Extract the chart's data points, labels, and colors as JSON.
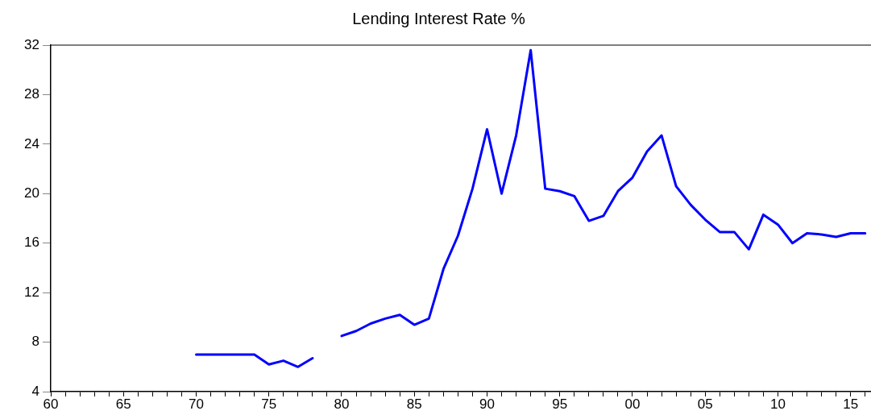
{
  "chart_data": {
    "type": "line",
    "title": "Lending Interest Rate %",
    "x": [
      1970,
      1971,
      1972,
      1973,
      1974,
      1975,
      1976,
      1977,
      1978,
      1979,
      1980,
      1981,
      1982,
      1983,
      1984,
      1985,
      1986,
      1987,
      1988,
      1989,
      1990,
      1991,
      1992,
      1993,
      1994,
      1995,
      1996,
      1997,
      1998,
      1999,
      2000,
      2001,
      2002,
      2003,
      2004,
      2005,
      2006,
      2007,
      2008,
      2009,
      2010,
      2011,
      2012,
      2013,
      2014,
      2015,
      2016
    ],
    "series": [
      {
        "color": "#0000ff",
        "values": [
          7.0,
          7.0,
          7.0,
          7.0,
          7.0,
          6.2,
          6.5,
          6.0,
          6.7,
          null,
          8.5,
          8.9,
          9.5,
          9.9,
          10.2,
          9.4,
          9.9,
          13.9,
          16.6,
          20.4,
          25.2,
          20.0,
          24.7,
          31.6,
          20.4,
          20.2,
          19.8,
          17.8,
          18.2,
          20.2,
          21.3,
          23.4,
          24.7,
          20.6,
          19.1,
          17.9,
          16.9,
          16.9,
          15.5,
          18.3,
          17.5,
          16.0,
          16.8,
          16.7,
          16.5,
          16.8,
          16.8
        ]
      }
    ],
    "xlim": [
      1960,
      2016.4
    ],
    "xticks": [
      {
        "value": 1960,
        "label": "60"
      },
      {
        "value": 1961,
        "label": null
      },
      {
        "value": 1962,
        "label": null
      },
      {
        "value": 1963,
        "label": null
      },
      {
        "value": 1964,
        "label": null
      },
      {
        "value": 1965,
        "label": "65"
      },
      {
        "value": 1966,
        "label": null
      },
      {
        "value": 1967,
        "label": null
      },
      {
        "value": 1968,
        "label": null
      },
      {
        "value": 1969,
        "label": null
      },
      {
        "value": 1970,
        "label": "70"
      },
      {
        "value": 1971,
        "label": null
      },
      {
        "value": 1972,
        "label": null
      },
      {
        "value": 1973,
        "label": null
      },
      {
        "value": 1974,
        "label": null
      },
      {
        "value": 1975,
        "label": "75"
      },
      {
        "value": 1976,
        "label": null
      },
      {
        "value": 1977,
        "label": null
      },
      {
        "value": 1978,
        "label": null
      },
      {
        "value": 1979,
        "label": null
      },
      {
        "value": 1980,
        "label": "80"
      },
      {
        "value": 1981,
        "label": null
      },
      {
        "value": 1982,
        "label": null
      },
      {
        "value": 1983,
        "label": null
      },
      {
        "value": 1984,
        "label": null
      },
      {
        "value": 1985,
        "label": "85"
      },
      {
        "value": 1986,
        "label": null
      },
      {
        "value": 1987,
        "label": null
      },
      {
        "value": 1988,
        "label": null
      },
      {
        "value": 1989,
        "label": null
      },
      {
        "value": 1990,
        "label": "90"
      },
      {
        "value": 1991,
        "label": null
      },
      {
        "value": 1992,
        "label": null
      },
      {
        "value": 1993,
        "label": null
      },
      {
        "value": 1994,
        "label": null
      },
      {
        "value": 1995,
        "label": "95"
      },
      {
        "value": 1996,
        "label": null
      },
      {
        "value": 1997,
        "label": null
      },
      {
        "value": 1998,
        "label": null
      },
      {
        "value": 1999,
        "label": null
      },
      {
        "value": 2000,
        "label": "00"
      },
      {
        "value": 2001,
        "label": null
      },
      {
        "value": 2002,
        "label": null
      },
      {
        "value": 2003,
        "label": null
      },
      {
        "value": 2004,
        "label": null
      },
      {
        "value": 2005,
        "label": "05"
      },
      {
        "value": 2006,
        "label": null
      },
      {
        "value": 2007,
        "label": null
      },
      {
        "value": 2008,
        "label": null
      },
      {
        "value": 2009,
        "label": null
      },
      {
        "value": 2010,
        "label": "10"
      },
      {
        "value": 2011,
        "label": null
      },
      {
        "value": 2012,
        "label": null
      },
      {
        "value": 2013,
        "label": null
      },
      {
        "value": 2014,
        "label": null
      },
      {
        "value": 2015,
        "label": "15"
      },
      {
        "value": 2016,
        "label": null
      }
    ],
    "ylim": [
      4,
      32
    ],
    "yticks": [
      4,
      8,
      12,
      16,
      20,
      24,
      28,
      32
    ],
    "grid": false,
    "legend": false,
    "marker": "none",
    "line_style": "solid"
  }
}
